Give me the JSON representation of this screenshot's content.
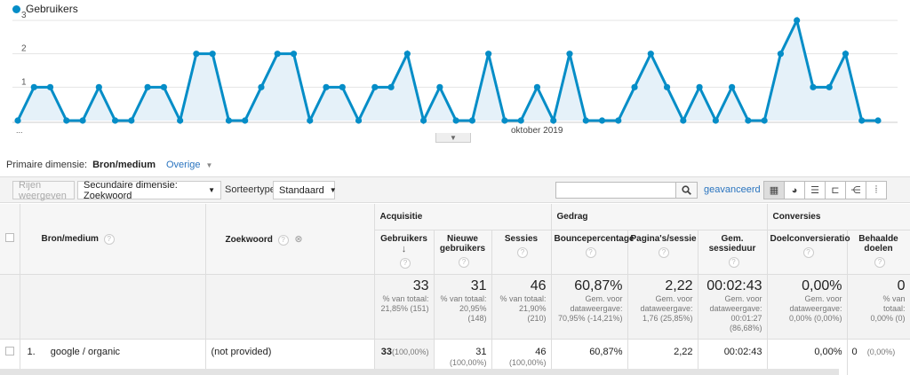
{
  "chart_data": {
    "type": "area",
    "series": [
      {
        "name": "Gebruikers",
        "color": "#058dc7",
        "values": [
          0,
          1,
          1,
          0,
          0,
          1,
          0,
          0,
          1,
          1,
          0,
          2,
          2,
          0,
          0,
          1,
          2,
          2,
          0,
          1,
          1,
          0,
          1,
          1,
          2,
          0,
          1,
          0,
          0,
          2,
          0,
          0,
          1,
          0,
          2,
          0,
          0,
          0,
          1,
          2,
          1,
          0,
          1,
          0,
          1,
          0,
          0,
          2,
          3,
          1,
          1,
          2,
          0,
          0
        ]
      }
    ],
    "ylim": [
      0,
      3
    ],
    "yticks": [
      "1",
      "2",
      "3"
    ],
    "xlabel_left": "...",
    "xlabel_center": "oktober 2019",
    "grid": true,
    "legend": "top-left"
  },
  "dimension": {
    "label": "Primaire dimensie:",
    "current": "Bron/medium",
    "other": "Overige"
  },
  "toolbar": {
    "plot_rows": "Rijen weergeven",
    "secondary_dimension": "Secundaire dimensie: Zoekwoord",
    "sort_label": "Sorteertype:",
    "sort_value": "Standaard",
    "search_value": "",
    "advanced": "geavanceerd"
  },
  "table": {
    "dim_headers": {
      "source": "Bron/medium",
      "keyword": "Zoekwoord"
    },
    "groups": {
      "acquisition": "Acquisitie",
      "behavior": "Gedrag",
      "conversions": "Conversies"
    },
    "columns": {
      "users": "Gebruikers",
      "new_users": "Nieuwe gebruikers",
      "sessions": "Sessies",
      "bounce": "Bouncepercentage",
      "pages": "Pagina's/sessie",
      "duration": "Gem. sessieduur",
      "conv_rate": "Doelconversieratio",
      "goals": "Behaalde doelen"
    },
    "totals": {
      "users": {
        "value": "33",
        "sub1": "% van totaal:",
        "sub2": "21,85% (151)"
      },
      "new_users": {
        "value": "31",
        "sub1": "% van totaal:",
        "sub2": "20,95%",
        "sub3": "(148)"
      },
      "sessions": {
        "value": "46",
        "sub1": "% van totaal:",
        "sub2": "21,90%",
        "sub3": "(210)"
      },
      "bounce": {
        "value": "60,87%",
        "sub1": "Gem. voor",
        "sub2": "dataweergave:",
        "sub3": "70,95% (-14,21%)"
      },
      "pages": {
        "value": "2,22",
        "sub1": "Gem. voor",
        "sub2": "dataweergave:",
        "sub3": "1,76 (25,85%)"
      },
      "duration": {
        "value": "00:02:43",
        "sub1": "Gem. voor",
        "sub2": "dataweergave:",
        "sub3": "00:01:27",
        "sub4": "(86,68%)"
      },
      "conv_rate": {
        "value": "0,00%",
        "sub1": "Gem. voor",
        "sub2": "dataweergave:",
        "sub3": "0,00% (0,00%)"
      },
      "goals": {
        "value": "0",
        "sub1": "% van",
        "sub2": "totaal:",
        "sub3": "0,00% (0)"
      }
    },
    "rows": [
      {
        "index": "1.",
        "source": "google / organic",
        "keyword": "(not provided)",
        "users": "33",
        "users_pct": "(100,00%)",
        "new_users": "31",
        "new_users_pct": "(100,00%)",
        "sessions": "46",
        "sessions_pct": "(100,00%)",
        "bounce": "60,87%",
        "pages": "2,22",
        "duration": "00:02:43",
        "conv_rate": "0,00%",
        "goals": "0",
        "goals_pct": "(0,00%)"
      }
    ]
  }
}
